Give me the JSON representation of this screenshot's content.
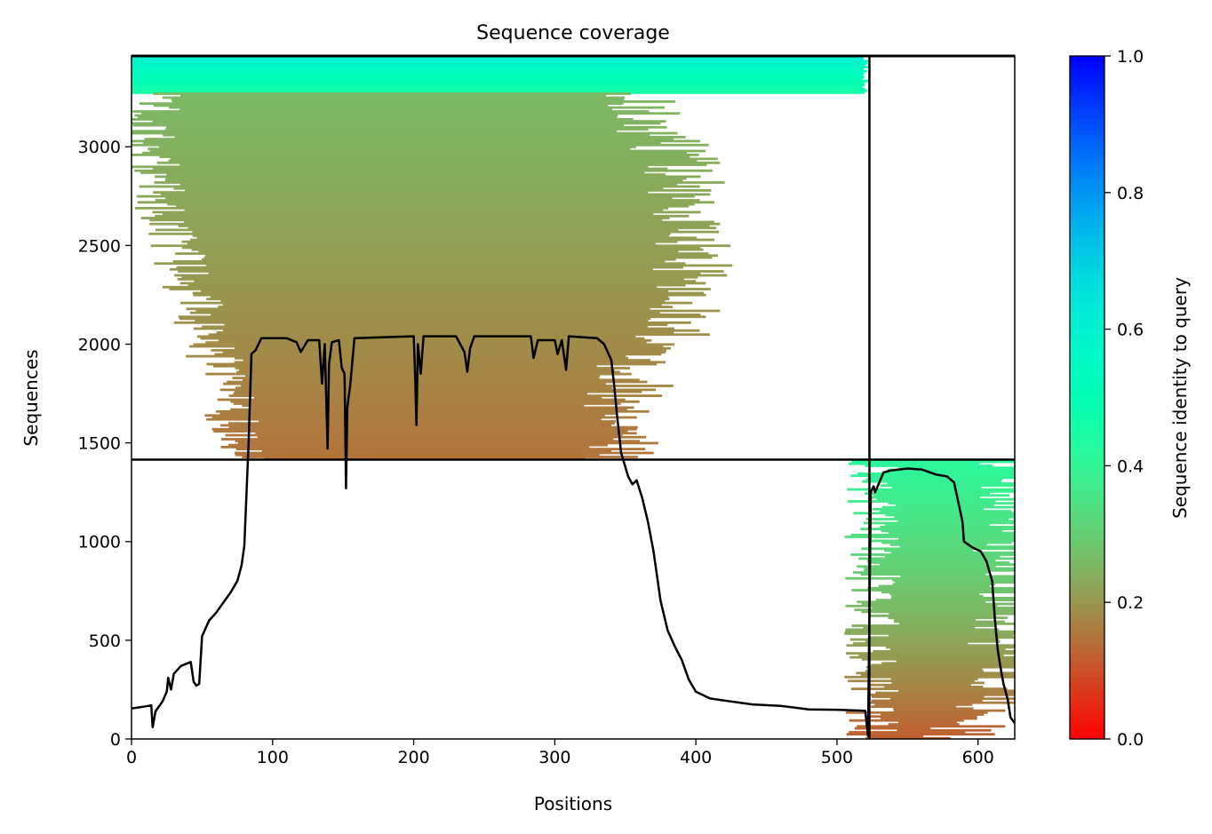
{
  "chart_data": {
    "type": "heatmap",
    "title": "Sequence coverage",
    "xlabel": "Positions",
    "ylabel": "Sequences",
    "xlim": [
      0,
      626
    ],
    "ylim": [
      0,
      3460
    ],
    "xticks": [
      0,
      100,
      200,
      300,
      400,
      500,
      600
    ],
    "yticks": [
      0,
      500,
      1000,
      1500,
      2000,
      2500,
      3000
    ],
    "grid": false,
    "colorbar": {
      "label": "Sequence identity to query",
      "ticks": [
        0.0,
        0.2,
        0.4,
        0.6,
        0.8,
        1.0
      ],
      "tick_labels": [
        "0.0",
        "0.2",
        "0.4",
        "0.6",
        "0.8",
        "1.0"
      ],
      "colormap": "rainbow_r",
      "range": [
        0,
        1
      ]
    },
    "separators": {
      "vertical_at_position": 523,
      "horizontal_at_sequence": 1415,
      "top_at_sequence": 3460
    },
    "blocks": [
      {
        "name": "block-1-high-identity",
        "seq_range": [
          3270,
          3460
        ],
        "pos_range": [
          0,
          523
        ],
        "identity_top": 0.62,
        "identity_bottom": 0.45
      },
      {
        "name": "block-1-main",
        "seq_range": [
          1415,
          3270
        ],
        "identity_top": 0.26,
        "identity_bottom": 0.15,
        "envelope": [
          [
            3270,
            25,
            365
          ],
          [
            3100,
            10,
            370
          ],
          [
            2900,
            15,
            390
          ],
          [
            2700,
            20,
            395
          ],
          [
            2500,
            30,
            400
          ],
          [
            2300,
            40,
            395
          ],
          [
            2100,
            50,
            390
          ],
          [
            1900,
            60,
            360
          ],
          [
            1700,
            70,
            350
          ],
          [
            1500,
            75,
            345
          ],
          [
            1415,
            80,
            345
          ]
        ]
      },
      {
        "name": "block-2",
        "seq_range": [
          0,
          1415
        ],
        "identity_top": 0.42,
        "identity_bottom": 0.12,
        "envelope": [
          [
            1415,
            525,
            626
          ],
          [
            1200,
            525,
            626
          ],
          [
            900,
            525,
            626
          ],
          [
            600,
            525,
            624
          ],
          [
            300,
            525,
            620
          ],
          [
            100,
            525,
            600
          ],
          [
            0,
            525,
            585
          ]
        ]
      }
    ],
    "coverage_line": {
      "name": "coverage",
      "points": [
        [
          0,
          155
        ],
        [
          10,
          165
        ],
        [
          14,
          170
        ],
        [
          15,
          60
        ],
        [
          17,
          140
        ],
        [
          22,
          190
        ],
        [
          25,
          240
        ],
        [
          26,
          310
        ],
        [
          28,
          250
        ],
        [
          30,
          330
        ],
        [
          35,
          370
        ],
        [
          42,
          390
        ],
        [
          44,
          290
        ],
        [
          46,
          270
        ],
        [
          48,
          280
        ],
        [
          50,
          520
        ],
        [
          55,
          600
        ],
        [
          60,
          640
        ],
        [
          65,
          690
        ],
        [
          70,
          740
        ],
        [
          75,
          800
        ],
        [
          78,
          880
        ],
        [
          80,
          980
        ],
        [
          82,
          1330
        ],
        [
          83,
          1500
        ],
        [
          85,
          1950
        ],
        [
          88,
          1970
        ],
        [
          92,
          2030
        ],
        [
          110,
          2030
        ],
        [
          117,
          2010
        ],
        [
          120,
          1960
        ],
        [
          125,
          2020
        ],
        [
          133,
          2020
        ],
        [
          135,
          1800
        ],
        [
          137,
          2000
        ],
        [
          139,
          1470
        ],
        [
          140,
          1900
        ],
        [
          142,
          2010
        ],
        [
          147,
          2020
        ],
        [
          149,
          1880
        ],
        [
          151,
          1850
        ],
        [
          152,
          1270
        ],
        [
          153,
          1680
        ],
        [
          155,
          1790
        ],
        [
          158,
          2030
        ],
        [
          200,
          2040
        ],
        [
          201,
          1840
        ],
        [
          202,
          1590
        ],
        [
          203,
          2000
        ],
        [
          205,
          1850
        ],
        [
          207,
          2040
        ],
        [
          230,
          2040
        ],
        [
          236,
          1960
        ],
        [
          238,
          1860
        ],
        [
          240,
          1980
        ],
        [
          243,
          2040
        ],
        [
          283,
          2040
        ],
        [
          285,
          1930
        ],
        [
          288,
          2020
        ],
        [
          300,
          2020
        ],
        [
          302,
          1950
        ],
        [
          305,
          2020
        ],
        [
          308,
          1870
        ],
        [
          310,
          2040
        ],
        [
          330,
          2030
        ],
        [
          335,
          2000
        ],
        [
          340,
          1920
        ],
        [
          342,
          1800
        ],
        [
          344,
          1650
        ],
        [
          347,
          1450
        ],
        [
          352,
          1330
        ],
        [
          355,
          1290
        ],
        [
          358,
          1310
        ],
        [
          362,
          1220
        ],
        [
          366,
          1100
        ],
        [
          370,
          950
        ],
        [
          375,
          700
        ],
        [
          380,
          550
        ],
        [
          385,
          470
        ],
        [
          390,
          400
        ],
        [
          395,
          300
        ],
        [
          400,
          240
        ],
        [
          410,
          205
        ],
        [
          420,
          195
        ],
        [
          440,
          175
        ],
        [
          460,
          168
        ],
        [
          480,
          150
        ],
        [
          500,
          148
        ],
        [
          520,
          143
        ],
        [
          521,
          80
        ],
        [
          522,
          15
        ],
        [
          524,
          1250
        ],
        [
          526,
          1280
        ],
        [
          527,
          1250
        ],
        [
          530,
          1300
        ],
        [
          533,
          1350
        ],
        [
          538,
          1360
        ],
        [
          550,
          1370
        ],
        [
          560,
          1365
        ],
        [
          570,
          1340
        ],
        [
          578,
          1330
        ],
        [
          583,
          1300
        ],
        [
          586,
          1200
        ],
        [
          589,
          1100
        ],
        [
          590,
          1000
        ],
        [
          596,
          970
        ],
        [
          602,
          950
        ],
        [
          606,
          900
        ],
        [
          610,
          800
        ],
        [
          612,
          600
        ],
        [
          614,
          450
        ],
        [
          616,
          360
        ],
        [
          618,
          280
        ],
        [
          621,
          200
        ],
        [
          623,
          110
        ],
        [
          626,
          80
        ]
      ]
    }
  }
}
